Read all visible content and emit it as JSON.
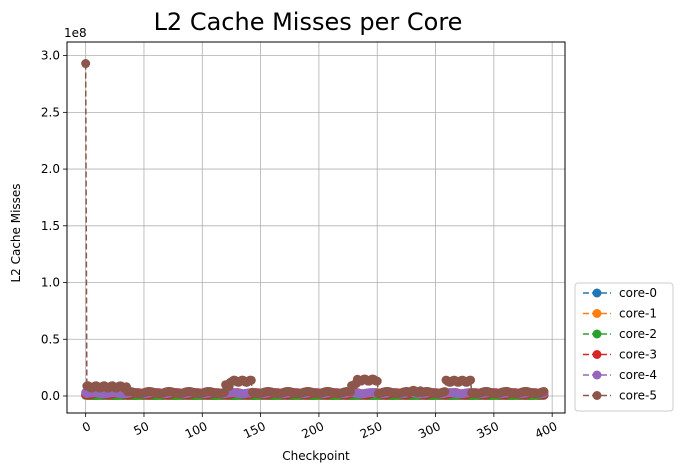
{
  "chart_data": {
    "type": "line",
    "title": "L2 Cache Misses per Core",
    "xlabel": "Checkpoint",
    "ylabel": "L2 Cache Misses",
    "y_offset_label": "1e8",
    "xlim": [
      -16,
      411
    ],
    "ylim": [
      -0.15,
      3.12
    ],
    "y_unit_scale": 100000000,
    "xticks": [
      0,
      50,
      100,
      150,
      200,
      250,
      300,
      350,
      400
    ],
    "xtick_labels": [
      "0",
      "50",
      "100",
      "150",
      "200",
      "250",
      "300",
      "350",
      "400"
    ],
    "yticks": [
      0.0,
      0.5,
      1.0,
      1.5,
      2.0,
      2.5,
      3.0
    ],
    "ytick_labels": [
      "0.0",
      "0.5",
      "1.0",
      "1.5",
      "2.0",
      "2.5",
      "3.0"
    ],
    "xtick_rotation": 25,
    "grid": true,
    "legend_position": "outside-lower-right",
    "marker": "circle",
    "linestyle": "dashed",
    "x_count": 394,
    "series": [
      {
        "name": "core-0",
        "color": "#1f77b4",
        "base": 0.004,
        "amp": 0.004,
        "segments": []
      },
      {
        "name": "core-1",
        "color": "#ff7f0e",
        "base": 0.004,
        "amp": 0.004,
        "segments": []
      },
      {
        "name": "core-2",
        "color": "#2ca02c",
        "base": 0.004,
        "amp": 0.004,
        "segments": []
      },
      {
        "name": "core-3",
        "color": "#d62728",
        "base": 0.01,
        "amp": 0.02,
        "segments": []
      },
      {
        "name": "core-4",
        "color": "#9467bd",
        "base": 0.02,
        "amp": 0.01,
        "first": 0.03,
        "segments": []
      },
      {
        "name": "core-5",
        "color": "#8c564b",
        "base": 0.02,
        "amp": 0.02,
        "first": 2.93,
        "segments": [
          [
            1,
            35,
            0.08
          ],
          [
            120,
            123,
            0.09
          ],
          [
            124,
            142,
            0.13
          ],
          [
            228,
            232,
            0.1
          ],
          [
            233,
            250,
            0.14
          ],
          [
            277,
            287,
            0.04
          ],
          [
            309,
            330,
            0.13
          ]
        ]
      }
    ]
  }
}
